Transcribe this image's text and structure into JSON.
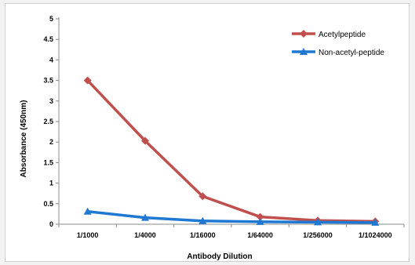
{
  "chart_data": {
    "type": "line",
    "title": "",
    "xlabel": "Antibody Dilution",
    "ylabel": "Absorbance (450nm)",
    "categories": [
      "1/1000",
      "1/4000",
      "1/16000",
      "1/64000",
      "1/256000",
      "1/1024000"
    ],
    "ylim": [
      0,
      5
    ],
    "yticks": [
      0,
      0.5,
      1,
      1.5,
      2,
      2.5,
      3,
      3.5,
      4,
      4.5,
      5
    ],
    "ytick_labels": [
      "0",
      "0.5",
      "1",
      "1.5",
      "2",
      "2.5",
      "3",
      "3.5",
      "4",
      "4.5",
      "5"
    ],
    "grid": false,
    "legend_position": "top-right",
    "series": [
      {
        "name": "Acetylpeptide",
        "values": [
          3.5,
          2.03,
          0.68,
          0.18,
          0.09,
          0.07
        ],
        "color": "#c0504d",
        "marker": "diamond"
      },
      {
        "name": "Non-acetyl-peptide",
        "values": [
          0.31,
          0.16,
          0.08,
          0.06,
          0.05,
          0.04
        ],
        "color": "#1f78d1",
        "marker": "triangle"
      }
    ]
  }
}
